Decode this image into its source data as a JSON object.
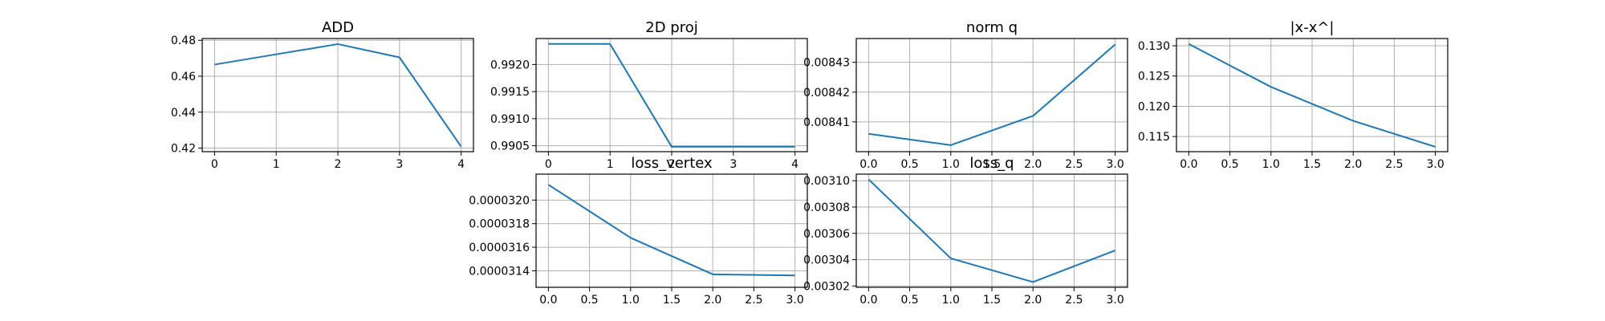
{
  "chart_data": [
    {
      "type": "line",
      "title": "ADD",
      "x": [
        0,
        1,
        2,
        3,
        4
      ],
      "series": [
        {
          "values": [
            0.4665,
            0.4722,
            0.4779,
            0.4705,
            0.4208
          ]
        }
      ],
      "xlim": [
        -0.2,
        4.2
      ],
      "ylim": [
        0.418,
        0.481
      ],
      "xticks": [
        0,
        1,
        2,
        3,
        4
      ],
      "xtick_labels": [
        "0",
        "1",
        "2",
        "3",
        "4"
      ],
      "yticks": [
        0.42,
        0.44,
        0.46,
        0.48
      ],
      "ytick_labels": [
        "0.42",
        "0.44",
        "0.46",
        "0.48"
      ],
      "grid": true,
      "color": "#1f77b4"
    },
    {
      "type": "line",
      "title": "2D proj",
      "x": [
        0,
        1,
        2,
        3,
        4
      ],
      "series": [
        {
          "values": [
            0.99238,
            0.99238,
            0.99048,
            0.99048,
            0.99048
          ]
        }
      ],
      "xlim": [
        -0.2,
        4.2
      ],
      "ylim": [
        0.99039,
        0.99248
      ],
      "xticks": [
        0,
        1,
        2,
        3,
        4
      ],
      "xtick_labels": [
        "0",
        "1",
        "2",
        "3",
        "4"
      ],
      "yticks": [
        0.9905,
        0.991,
        0.9915,
        0.992
      ],
      "ytick_labels": [
        "0.9905",
        "0.9910",
        "0.9915",
        "0.9920"
      ],
      "grid": true,
      "color": "#1f77b4"
    },
    {
      "type": "line",
      "title": "norm q",
      "x": [
        0,
        1,
        2,
        3
      ],
      "series": [
        {
          "values": [
            0.008406,
            0.0084022,
            0.008412,
            0.008436
          ]
        }
      ],
      "xlim": [
        -0.15,
        3.15
      ],
      "ylim": [
        0.0084,
        0.008438
      ],
      "xticks": [
        0,
        0.5,
        1,
        1.5,
        2,
        2.5,
        3
      ],
      "xtick_labels": [
        "0.0",
        "0.5",
        "1.0",
        "1.5",
        "2.0",
        "2.5",
        "3.0"
      ],
      "yticks": [
        0.00841,
        0.00842,
        0.00843
      ],
      "ytick_labels": [
        "0.00841",
        "0.00842",
        "0.00843"
      ],
      "grid": true,
      "color": "#1f77b4"
    },
    {
      "type": "line",
      "title": "|x-x^|",
      "x": [
        0,
        1,
        2,
        3
      ],
      "series": [
        {
          "values": [
            0.1303,
            0.1232,
            0.1176,
            0.1133
          ]
        }
      ],
      "xlim": [
        -0.15,
        3.15
      ],
      "ylim": [
        0.1125,
        0.1312
      ],
      "xticks": [
        0,
        0.5,
        1,
        1.5,
        2,
        2.5,
        3
      ],
      "xtick_labels": [
        "0.0",
        "0.5",
        "1.0",
        "1.5",
        "2.0",
        "2.5",
        "3.0"
      ],
      "yticks": [
        0.115,
        0.12,
        0.125,
        0.13
      ],
      "ytick_labels": [
        "0.115",
        "0.120",
        "0.125",
        "0.130"
      ],
      "grid": true,
      "color": "#1f77b4"
    },
    {
      "type": "line",
      "title": "loss_vertex",
      "x": [
        0,
        1,
        2,
        3
      ],
      "series": [
        {
          "values": [
            3.213e-05,
            3.168e-05,
            3.137e-05,
            3.136e-05
          ]
        }
      ],
      "xlim": [
        -0.15,
        3.15
      ],
      "ylim": [
        3.126e-05,
        3.222e-05
      ],
      "xticks": [
        0,
        0.5,
        1,
        1.5,
        2,
        2.5,
        3
      ],
      "xtick_labels": [
        "0.0",
        "0.5",
        "1.0",
        "1.5",
        "2.0",
        "2.5",
        "3.0"
      ],
      "yticks": [
        3.14e-05,
        3.16e-05,
        3.18e-05,
        3.2e-05
      ],
      "ytick_labels": [
        "0.0000314",
        "0.0000316",
        "0.0000318",
        "0.0000320"
      ],
      "grid": true,
      "color": "#1f77b4"
    },
    {
      "type": "line",
      "title": "loss_q",
      "x": [
        0,
        1,
        2,
        3
      ],
      "series": [
        {
          "values": [
            0.003101,
            0.003041,
            0.003023,
            0.003047
          ]
        }
      ],
      "xlim": [
        -0.15,
        3.15
      ],
      "ylim": [
        0.003019,
        0.003105
      ],
      "xticks": [
        0,
        0.5,
        1,
        1.5,
        2,
        2.5,
        3
      ],
      "xtick_labels": [
        "0.0",
        "0.5",
        "1.0",
        "1.5",
        "2.0",
        "2.5",
        "3.0"
      ],
      "yticks": [
        0.00302,
        0.00304,
        0.00306,
        0.00308,
        0.0031
      ],
      "ytick_labels": [
        "0.00302",
        "0.00304",
        "0.00306",
        "0.00308",
        "0.00310"
      ],
      "grid": true,
      "color": "#1f77b4"
    }
  ]
}
